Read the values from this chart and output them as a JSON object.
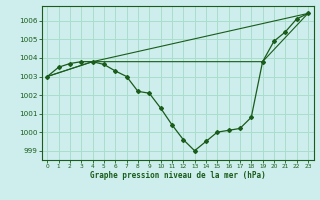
{
  "title": "Graphe pression niveau de la mer (hPa)",
  "background_color": "#cdeeed",
  "grid_color": "#aaddcc",
  "line_color": "#1a5c1a",
  "marker_color": "#1a5c1a",
  "xlim": [
    -0.5,
    23.5
  ],
  "ylim": [
    998.5,
    1006.8
  ],
  "yticks": [
    999,
    1000,
    1001,
    1002,
    1003,
    1004,
    1005,
    1006
  ],
  "xticks": [
    0,
    1,
    2,
    3,
    4,
    5,
    6,
    7,
    8,
    9,
    10,
    11,
    12,
    13,
    14,
    15,
    16,
    17,
    18,
    19,
    20,
    21,
    22,
    23
  ],
  "series1_x": [
    0,
    1,
    2,
    3,
    4,
    5,
    6,
    7,
    8,
    9,
    10,
    11,
    12,
    13,
    14,
    15,
    16,
    17,
    18,
    19,
    20,
    21,
    22,
    23
  ],
  "series1_y": [
    1003.0,
    1003.5,
    1003.7,
    1003.8,
    1003.8,
    1003.65,
    1003.3,
    1003.0,
    1002.2,
    1002.1,
    1001.3,
    1000.4,
    999.6,
    999.0,
    999.5,
    1000.0,
    1000.1,
    1000.2,
    1000.8,
    1003.8,
    1004.9,
    1005.4,
    1006.1,
    1006.4
  ],
  "series2_x": [
    0,
    4,
    23
  ],
  "series2_y": [
    1003.0,
    1003.8,
    1006.4
  ],
  "series3_x": [
    0,
    4,
    19,
    23
  ],
  "series3_y": [
    1003.0,
    1003.8,
    1003.8,
    1006.4
  ]
}
